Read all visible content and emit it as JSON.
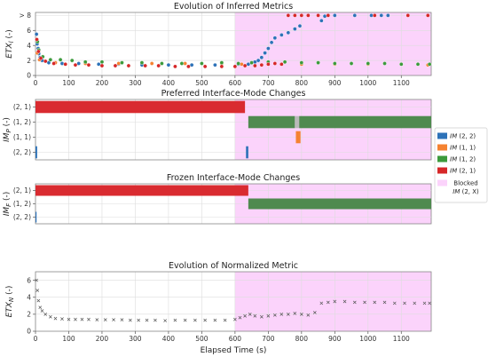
{
  "figure": {
    "xlabel": "Elapsed Time (s)",
    "x_ticks": [
      0,
      100,
      200,
      300,
      400,
      500,
      600,
      700,
      800,
      900,
      1000,
      1100
    ],
    "xlim": [
      0,
      1190
    ],
    "blocked_region": [
      600,
      1190
    ]
  },
  "colors": {
    "blue": "#2d72b8",
    "orange": "#f58231",
    "green": "#3c9a3c",
    "red": "#d62728",
    "blocked": "#fbd3fb",
    "bar_green": "#4f8a4f",
    "bar_red": "#d92b30",
    "gray": "#b9b9b9"
  },
  "legend": {
    "items": [
      {
        "key": "blue",
        "prefix": "IM",
        "suffix": " (2, 2)"
      },
      {
        "key": "orange",
        "prefix": "IM",
        "suffix": " (1, 1)"
      },
      {
        "key": "green",
        "prefix": "IM",
        "suffix": " (1, 2)"
      },
      {
        "key": "red",
        "prefix": "IM",
        "suffix": " (2, 1)"
      }
    ],
    "blocked_line1": "Blocked",
    "blocked_prefix": "IM",
    "blocked_suffix": " (2, X)"
  },
  "chart_data": [
    {
      "type": "scatter",
      "title": "Evolution of Inferred Metrics",
      "ylabel_main": "ETX",
      "ylabel_sub": "l",
      "ylabel_tail": " (-)",
      "ylim": [
        0,
        8.4
      ],
      "y_ticks": [
        0,
        2,
        4,
        6
      ],
      "y_top_label": "> 8",
      "series": [
        {
          "key": "blue",
          "points": [
            [
              3,
              5.5
            ],
            [
              5,
              4.2
            ],
            [
              8,
              3.6
            ],
            [
              10,
              2.9
            ],
            [
              14,
              2.4
            ],
            [
              20,
              2.0
            ],
            [
              40,
              1.7
            ],
            [
              80,
              1.6
            ],
            [
              130,
              1.6
            ],
            [
              190,
              1.5
            ],
            [
              250,
              1.5
            ],
            [
              320,
              1.4
            ],
            [
              400,
              1.4
            ],
            [
              470,
              1.4
            ],
            [
              540,
              1.4
            ],
            [
              610,
              1.5
            ],
            [
              640,
              1.5
            ],
            [
              660,
              1.8
            ],
            [
              670,
              2.0
            ],
            [
              680,
              2.4
            ],
            [
              690,
              3.0
            ],
            [
              700,
              3.6
            ],
            [
              710,
              4.4
            ],
            [
              720,
              5.0
            ],
            [
              740,
              5.4
            ],
            [
              760,
              5.7
            ],
            [
              780,
              6.2
            ],
            [
              795,
              6.6
            ],
            [
              860,
              7.3
            ],
            [
              870,
              7.9
            ],
            [
              900,
              8.0
            ],
            [
              960,
              8.0
            ],
            [
              1010,
              8.0
            ],
            [
              1040,
              8.0
            ],
            [
              1060,
              8.0
            ]
          ]
        },
        {
          "key": "orange",
          "points": [
            [
              5,
              3.0
            ],
            [
              12,
              2.1
            ],
            [
              60,
              1.7
            ],
            [
              150,
              1.6
            ],
            [
              250,
              1.6
            ],
            [
              350,
              1.6
            ],
            [
              450,
              1.6
            ],
            [
              560,
              1.6
            ],
            [
              620,
              1.5
            ],
            [
              700,
              1.5
            ],
            [
              800,
              1.5
            ],
            [
              900,
              1.5
            ],
            [
              1000,
              1.5
            ],
            [
              1100,
              1.5
            ],
            [
              1180,
              1.4
            ]
          ]
        },
        {
          "key": "green",
          "points": [
            [
              6,
              4.5
            ],
            [
              10,
              3.4
            ],
            [
              22,
              2.5
            ],
            [
              45,
              2.1
            ],
            [
              75,
              2.1
            ],
            [
              110,
              2.0
            ],
            [
              150,
              1.8
            ],
            [
              200,
              1.8
            ],
            [
              260,
              1.7
            ],
            [
              320,
              1.7
            ],
            [
              380,
              1.6
            ],
            [
              440,
              1.6
            ],
            [
              500,
              1.6
            ],
            [
              560,
              1.7
            ],
            [
              610,
              1.6
            ],
            [
              650,
              1.7
            ],
            [
              700,
              1.8
            ],
            [
              750,
              1.8
            ],
            [
              800,
              1.7
            ],
            [
              850,
              1.7
            ],
            [
              900,
              1.6
            ],
            [
              950,
              1.6
            ],
            [
              1000,
              1.6
            ],
            [
              1050,
              1.6
            ],
            [
              1100,
              1.5
            ],
            [
              1150,
              1.5
            ],
            [
              1185,
              1.5
            ]
          ]
        },
        {
          "key": "red",
          "points": [
            [
              4,
              4.8
            ],
            [
              9,
              3.2
            ],
            [
              16,
              2.3
            ],
            [
              30,
              1.9
            ],
            [
              55,
              1.6
            ],
            [
              90,
              1.5
            ],
            [
              120,
              1.4
            ],
            [
              160,
              1.4
            ],
            [
              200,
              1.3
            ],
            [
              240,
              1.3
            ],
            [
              280,
              1.3
            ],
            [
              330,
              1.3
            ],
            [
              370,
              1.3
            ],
            [
              420,
              1.2
            ],
            [
              460,
              1.2
            ],
            [
              510,
              1.2
            ],
            [
              560,
              1.2
            ],
            [
              600,
              1.2
            ],
            [
              630,
              1.3
            ],
            [
              660,
              1.3
            ],
            [
              680,
              1.4
            ],
            [
              700,
              1.5
            ],
            [
              720,
              1.6
            ],
            [
              740,
              1.5
            ],
            [
              760,
              8.0
            ],
            [
              780,
              8.0
            ],
            [
              800,
              8.0
            ],
            [
              820,
              8.0
            ],
            [
              850,
              8.0
            ],
            [
              880,
              8.0
            ],
            [
              1020,
              8.0
            ],
            [
              1120,
              8.0
            ],
            [
              1180,
              8.0
            ]
          ]
        }
      ]
    },
    {
      "type": "bar",
      "title": "Preferred Interface-Mode Changes",
      "ylabel_main": "IM",
      "ylabel_sub": "P",
      "ylabel_tail": " (-)",
      "categories": [
        "(2, 1)",
        "(1, 2)",
        "(1, 1)",
        "(2, 2)"
      ],
      "segments": [
        {
          "key": "bar_red",
          "row": 0,
          "start": 0,
          "end": 630
        },
        {
          "key": "bar_green",
          "row": 1,
          "start": 640,
          "end": 780
        },
        {
          "key": "gray",
          "row": 1,
          "start": 780,
          "end": 793
        },
        {
          "key": "bar_green",
          "row": 1,
          "start": 793,
          "end": 1190
        },
        {
          "key": "orange",
          "row": 2,
          "start": 783,
          "end": 797
        },
        {
          "key": "blue",
          "row": 3,
          "start": 0,
          "end": 5
        },
        {
          "key": "blue",
          "row": 3,
          "start": 633,
          "end": 640
        }
      ]
    },
    {
      "type": "bar",
      "title": "Frozen Interface-Mode Changes",
      "ylabel_main": "IM",
      "ylabel_sub": "F",
      "ylabel_tail": " (-)",
      "categories": [
        "(2, 1)",
        "(1, 2)",
        "(2, 2)"
      ],
      "segments": [
        {
          "key": "bar_red",
          "row": 0,
          "start": 0,
          "end": 640
        },
        {
          "key": "bar_green",
          "row": 1,
          "start": 640,
          "end": 1190
        },
        {
          "key": "blue",
          "row": 2,
          "start": 0,
          "end": 3
        }
      ]
    },
    {
      "type": "scatter",
      "title": "Evolution of Normalized Metric",
      "ylabel_main": "ETX",
      "ylabel_sub": "N",
      "ylabel_tail": " (-)",
      "ylim": [
        0,
        7
      ],
      "y_ticks": [
        0,
        2,
        4,
        6
      ],
      "points": [
        [
          3,
          6.0
        ],
        [
          6,
          4.8
        ],
        [
          9,
          3.6
        ],
        [
          14,
          2.8
        ],
        [
          20,
          2.4
        ],
        [
          30,
          2.0
        ],
        [
          45,
          1.7
        ],
        [
          60,
          1.5
        ],
        [
          80,
          1.45
        ],
        [
          100,
          1.4
        ],
        [
          120,
          1.4
        ],
        [
          140,
          1.4
        ],
        [
          160,
          1.4
        ],
        [
          185,
          1.35
        ],
        [
          210,
          1.35
        ],
        [
          235,
          1.35
        ],
        [
          260,
          1.35
        ],
        [
          285,
          1.3
        ],
        [
          310,
          1.3
        ],
        [
          335,
          1.3
        ],
        [
          360,
          1.3
        ],
        [
          390,
          1.25
        ],
        [
          420,
          1.3
        ],
        [
          450,
          1.3
        ],
        [
          480,
          1.3
        ],
        [
          510,
          1.3
        ],
        [
          540,
          1.3
        ],
        [
          570,
          1.3
        ],
        [
          600,
          1.4
        ],
        [
          615,
          1.6
        ],
        [
          630,
          1.8
        ],
        [
          645,
          2.0
        ],
        [
          660,
          1.8
        ],
        [
          680,
          1.7
        ],
        [
          700,
          1.8
        ],
        [
          720,
          1.9
        ],
        [
          740,
          2.0
        ],
        [
          760,
          2.0
        ],
        [
          780,
          2.1
        ],
        [
          800,
          2.0
        ],
        [
          820,
          1.9
        ],
        [
          840,
          2.2
        ],
        [
          860,
          3.3
        ],
        [
          880,
          3.4
        ],
        [
          900,
          3.5
        ],
        [
          930,
          3.5
        ],
        [
          960,
          3.4
        ],
        [
          990,
          3.4
        ],
        [
          1020,
          3.4
        ],
        [
          1050,
          3.4
        ],
        [
          1080,
          3.3
        ],
        [
          1110,
          3.3
        ],
        [
          1140,
          3.3
        ],
        [
          1170,
          3.3
        ],
        [
          1185,
          3.3
        ]
      ]
    }
  ]
}
